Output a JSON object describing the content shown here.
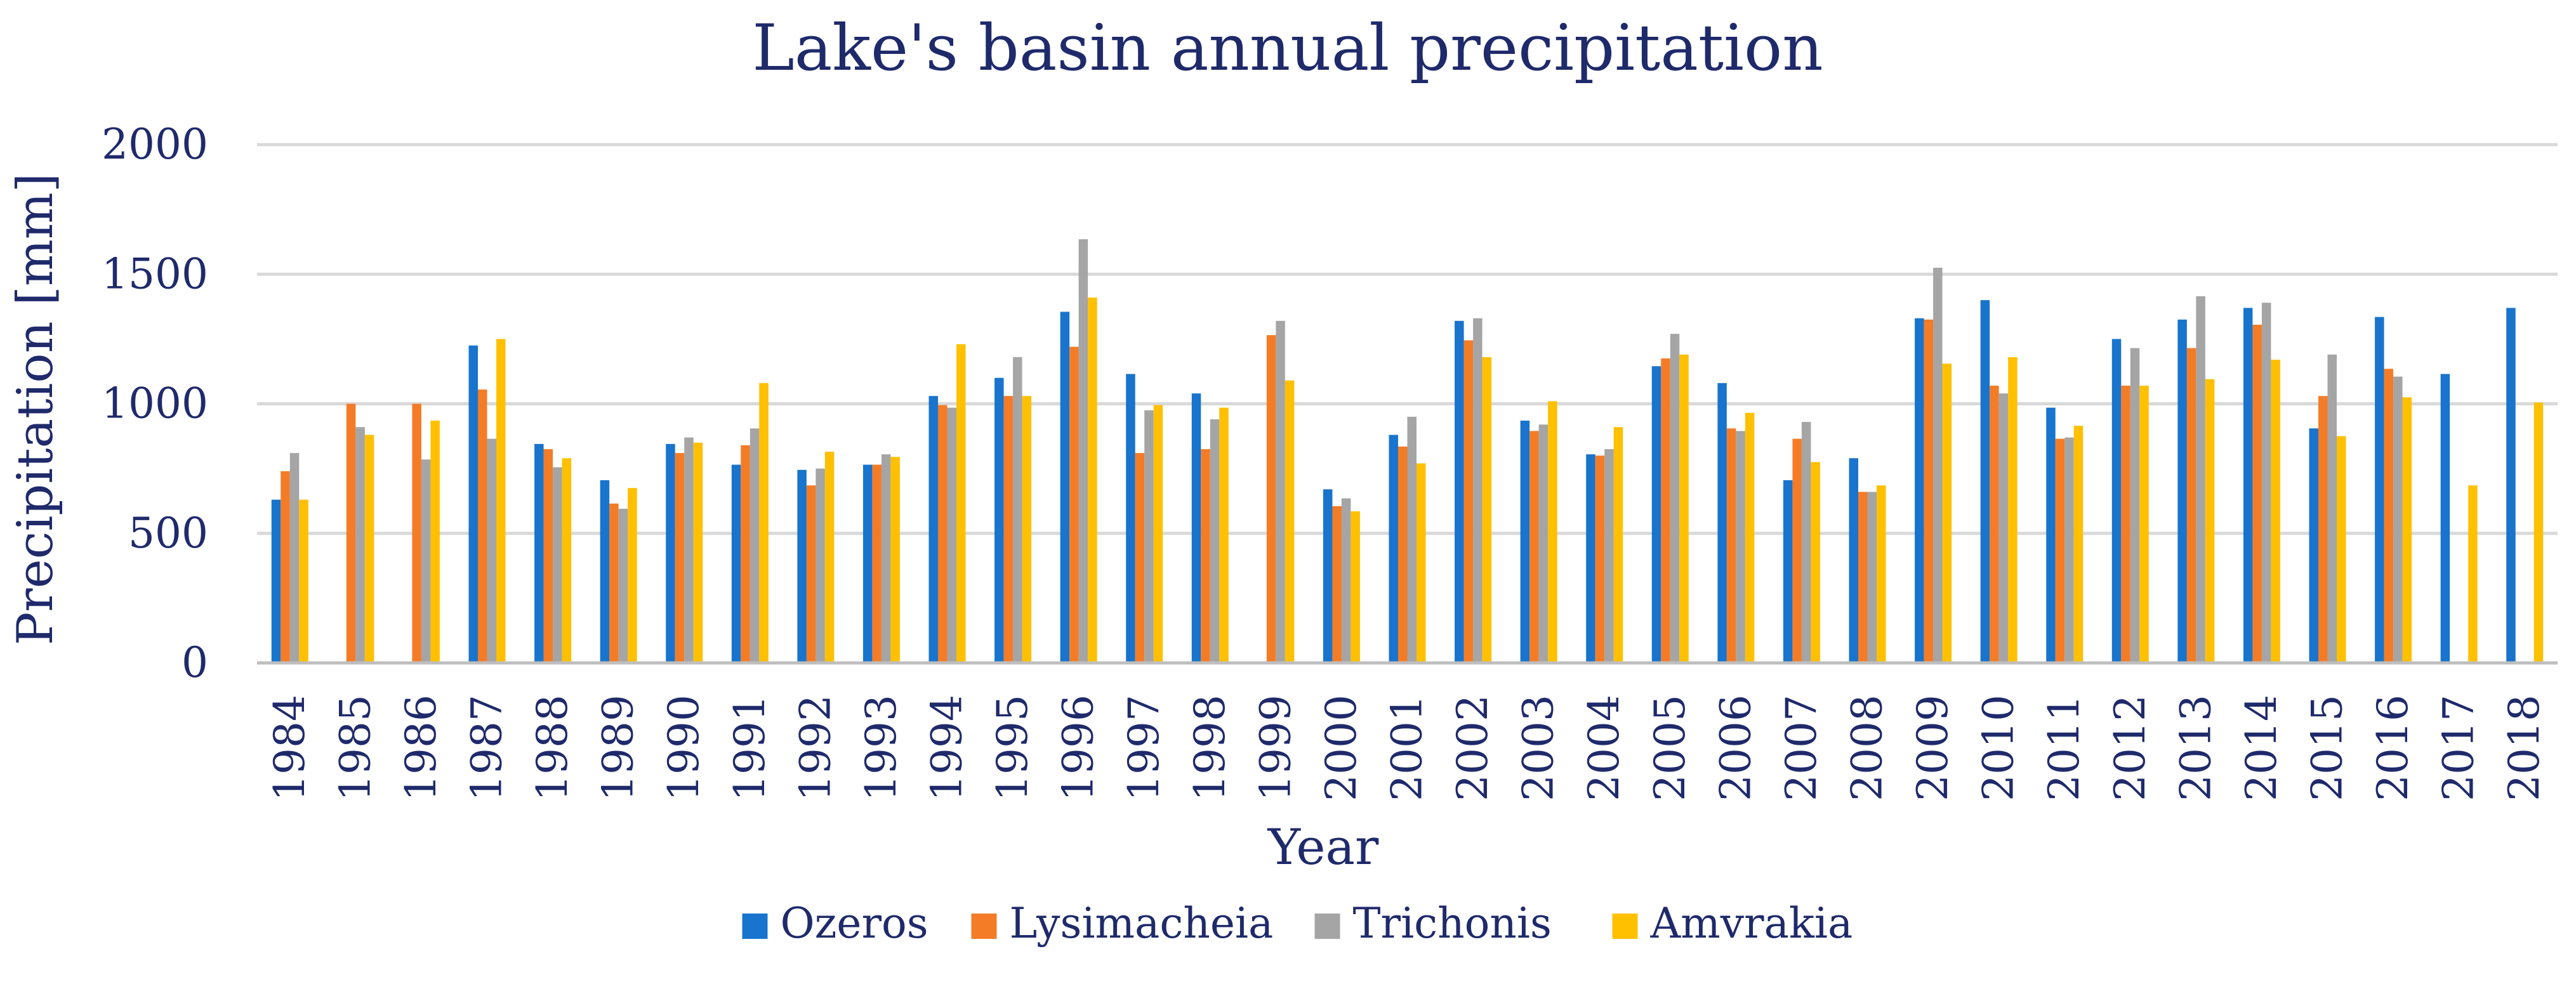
{
  "chart_data": {
    "type": "bar",
    "title": "Lake's basin annual precipitation",
    "xlabel": "Year",
    "ylabel": "Precipitation [mm]",
    "ylim": [
      0,
      2000
    ],
    "yticks": [
      0,
      500,
      1000,
      1500,
      2000
    ],
    "grid": true,
    "legend_position": "bottom",
    "categories": [
      "1984",
      "1985",
      "1986",
      "1987",
      "1988",
      "1989",
      "1990",
      "1991",
      "1992",
      "1993",
      "1994",
      "1995",
      "1996",
      "1997",
      "1998",
      "1999",
      "2000",
      "2001",
      "2002",
      "2003",
      "2004",
      "2005",
      "2006",
      "2007",
      "2008",
      "2009",
      "2010",
      "2011",
      "2012",
      "2013",
      "2014",
      "2015",
      "2016",
      "2017",
      "2018"
    ],
    "series": [
      {
        "name": "Ozeros",
        "color": "#1874CD",
        "values": [
          630,
          null,
          null,
          1225,
          845,
          705,
          845,
          765,
          745,
          765,
          1030,
          1100,
          1355,
          1115,
          1040,
          null,
          670,
          880,
          1320,
          935,
          805,
          1145,
          1080,
          705,
          790,
          1330,
          1400,
          985,
          1250,
          1325,
          1370,
          905,
          1335,
          1115,
          1370
        ]
      },
      {
        "name": "Lysimacheia",
        "color": "#F47C27",
        "values": [
          740,
          1000,
          1000,
          1055,
          825,
          615,
          810,
          840,
          685,
          765,
          995,
          1030,
          1220,
          810,
          825,
          1265,
          605,
          835,
          1245,
          895,
          800,
          1175,
          905,
          865,
          660,
          1325,
          1070,
          865,
          1070,
          1215,
          1305,
          1030,
          1135,
          null,
          null
        ]
      },
      {
        "name": "Trichonis",
        "color": "#A5A5A5",
        "values": [
          810,
          910,
          785,
          865,
          755,
          595,
          870,
          905,
          750,
          805,
          985,
          1180,
          1635,
          975,
          940,
          1320,
          635,
          950,
          1330,
          920,
          825,
          1270,
          895,
          930,
          660,
          1525,
          1040,
          870,
          1215,
          1415,
          1390,
          1190,
          1105,
          null,
          null
        ]
      },
      {
        "name": "Amvrakia",
        "color": "#FFC000",
        "values": [
          630,
          880,
          935,
          1250,
          790,
          675,
          850,
          1080,
          815,
          795,
          1230,
          1030,
          1410,
          995,
          985,
          1090,
          585,
          770,
          1180,
          1010,
          910,
          1190,
          965,
          775,
          685,
          1155,
          1180,
          915,
          1070,
          1095,
          1170,
          875,
          1025,
          685,
          1005
        ]
      }
    ]
  }
}
